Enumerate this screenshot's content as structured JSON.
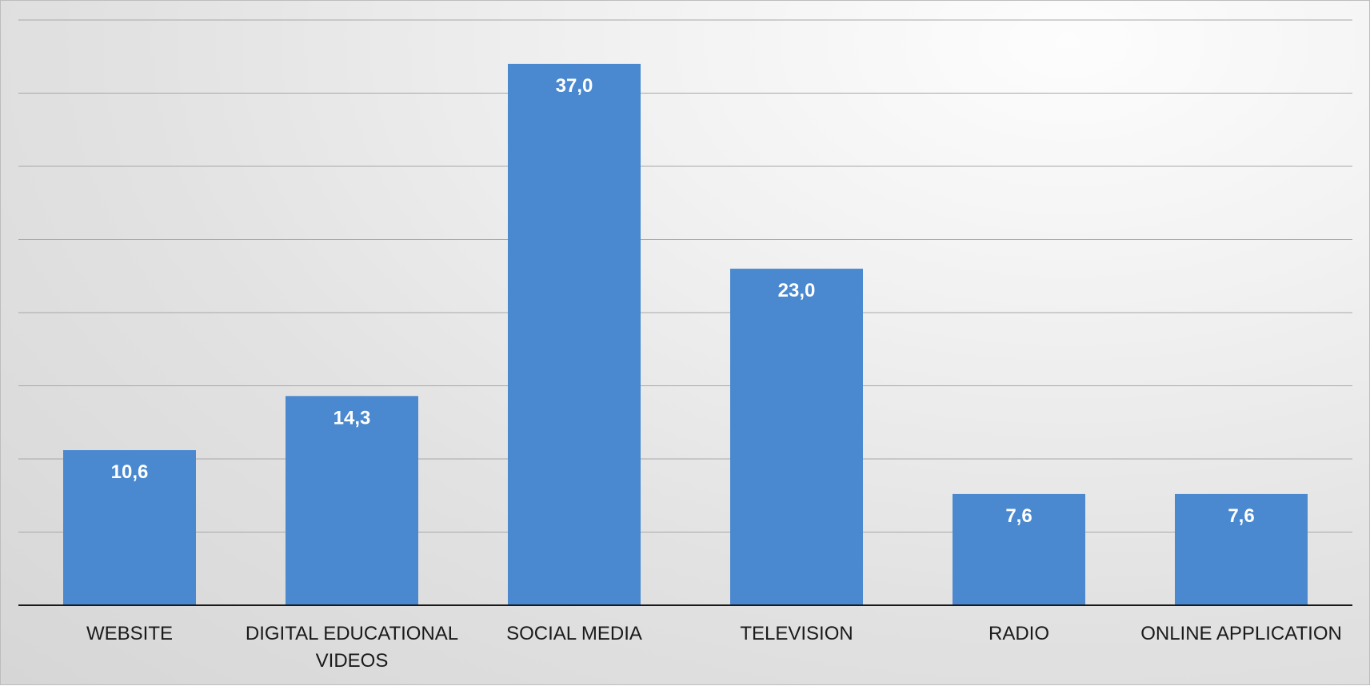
{
  "chart_data": {
    "type": "bar",
    "categories": [
      [
        "WEBSITE"
      ],
      [
        "DIGITAL EDUCATIONAL",
        "VIDEOS"
      ],
      [
        "SOCIAL MEDIA"
      ],
      [
        "TELEVISION"
      ],
      [
        "RADIO"
      ],
      [
        "ONLINE APPLICATION"
      ]
    ],
    "values": [
      10.6,
      14.3,
      37.0,
      23.0,
      7.6,
      7.6
    ],
    "data_labels": [
      "10,6",
      "14,3",
      "37,0",
      "23,0",
      "7,6",
      "7,6"
    ],
    "title": "",
    "xlabel": "",
    "ylabel": "",
    "ylim": [
      0,
      40
    ],
    "y_gridline_step": 5,
    "grid": true,
    "legend": "none",
    "colors": {
      "bar": "#4a88cf",
      "data_label": "#ffffff",
      "axis": "#1a1a1a",
      "gridline": "#a8a8a8"
    }
  }
}
